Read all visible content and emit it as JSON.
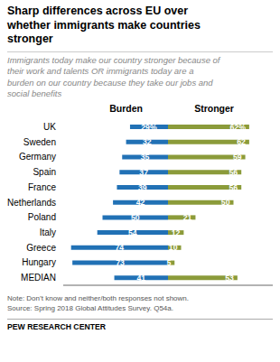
{
  "chart_data": {
    "type": "bar",
    "orientation": "horizontal",
    "title": "Sharp differences across EU over\nwhether immigrants make countries\nstronger",
    "subtitle": "Immigrants today make our country stronger because of\ntheir work and talents OR immigrants today are a\nburden on our country because they take our jobs and\nsocial benefits",
    "note": "Note: Don’t know and neither/both responses not shown.\nSource: Spring 2018 Global Attitudes Survey. Q54a.",
    "footer": "PEW RESEARCH CENTER",
    "categories": [
      "UK",
      "Sweden",
      "Germany",
      "Spain",
      "France",
      "Netherlands",
      "Poland",
      "Italy",
      "Greece",
      "Hungary",
      "MEDIAN"
    ],
    "series": [
      {
        "name": "Burden",
        "color": "#2171b5",
        "values": [
          29,
          32,
          35,
          37,
          39,
          42,
          50,
          54,
          74,
          73,
          41
        ],
        "value_labels": [
          "29%",
          "32",
          "35",
          "37",
          "39",
          "42",
          "50",
          "54",
          "74",
          "73",
          "41"
        ]
      },
      {
        "name": "Stronger",
        "color": "#8B9B3A",
        "values": [
          62,
          62,
          59,
          56,
          56,
          50,
          21,
          12,
          10,
          5,
          53
        ],
        "value_labels": [
          "62%",
          "62",
          "59",
          "56",
          "56",
          "50",
          "21",
          "12",
          "10",
          "5",
          "53"
        ]
      }
    ],
    "xlim": [
      -80,
      80
    ],
    "data_labels": true,
    "tick_labels": "y",
    "grid": false
  }
}
